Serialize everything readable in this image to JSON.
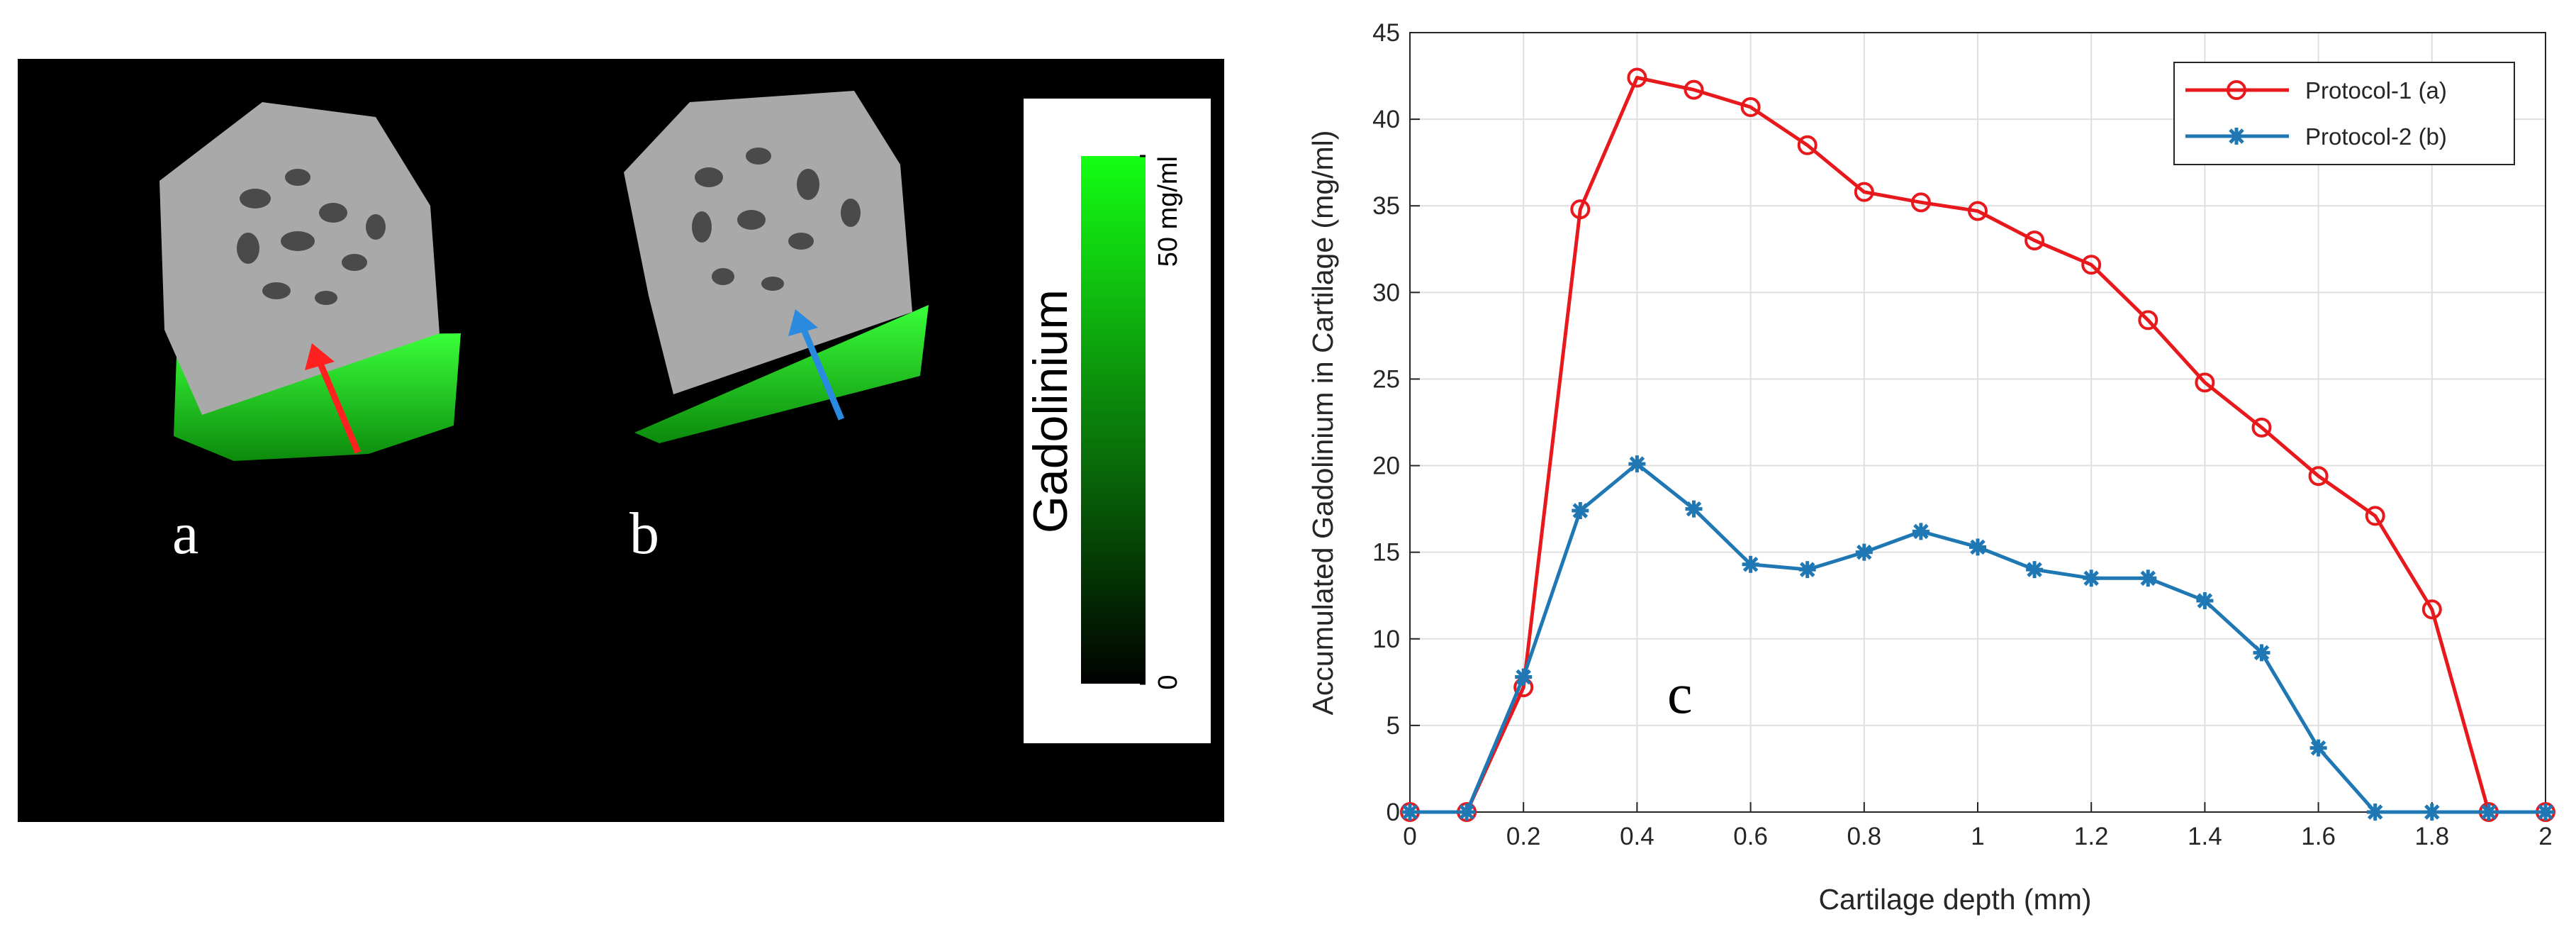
{
  "image_panel": {
    "labels": [
      "a",
      "b"
    ],
    "colorbar": {
      "title": "Gadolinium",
      "lim": [
        0,
        50
      ],
      "ticks": [
        0,
        {
          "value": 50,
          "label": "50 mg/ml"
        }
      ]
    }
  },
  "chart_data": {
    "type": "line",
    "xlabel": "Cartilage depth (mm)",
    "ylabel": "Accumulated Gadolinium in Cartilage (mg/ml)",
    "annotation": "c",
    "x": [
      0,
      0.1,
      0.2,
      0.3,
      0.4,
      0.5,
      0.6,
      0.7,
      0.8,
      0.9,
      1,
      1.1,
      1.2,
      1.3,
      1.4,
      1.5,
      1.6,
      1.7,
      1.8,
      1.9,
      2
    ],
    "series": [
      {
        "name": "Protocol-1 (a)",
        "color": "#e8191c",
        "marker": "circle",
        "values": [
          0,
          0,
          7.2,
          34.8,
          42.4,
          41.7,
          40.7,
          38.5,
          35.8,
          35.2,
          34.7,
          33,
          31.6,
          28.4,
          24.8,
          22.2,
          19.4,
          17.1,
          11.7,
          0,
          0
        ]
      },
      {
        "name": "Protocol-2 (b)",
        "color": "#1f78b4",
        "marker": "star",
        "values": [
          0,
          0,
          7.8,
          17.4,
          20.1,
          17.5,
          14.3,
          14,
          15,
          16.2,
          15.3,
          14,
          13.5,
          13.5,
          12.2,
          9.2,
          3.7,
          0,
          0,
          0,
          0
        ]
      }
    ],
    "xlim": [
      0,
      2
    ],
    "xticks": [
      0,
      0.2,
      0.4,
      0.6,
      0.8,
      1,
      1.2,
      1.4,
      1.6,
      1.8,
      2
    ],
    "ylim": [
      0,
      45
    ],
    "yticks": [
      0,
      5,
      10,
      15,
      20,
      25,
      30,
      35,
      40,
      45
    ],
    "grid": true,
    "legend": "upper right"
  }
}
